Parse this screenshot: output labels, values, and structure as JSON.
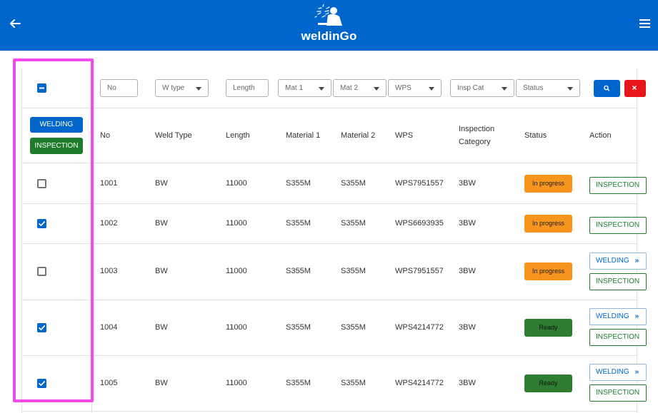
{
  "header": {
    "title": "weldinGo",
    "logo_icon": "welder-logo-icon",
    "back_icon": "arrow-left-icon",
    "menu_icon": "hamburger-menu-icon",
    "color": "#0066cc"
  },
  "filters": {
    "no": "No",
    "wtype": "W type",
    "length": "Length",
    "mat1": "Mat 1",
    "mat2": "Mat 2",
    "wps": "WPS",
    "inspcat": "Insp Cat",
    "status": "Status",
    "search_icon": "search-icon",
    "clear_icon": "close-icon"
  },
  "bulk_actions": {
    "welding": "WELDING",
    "inspection": "INSPECTION"
  },
  "columns": {
    "no": "No",
    "weld_type": "Weld Type",
    "length": "Length",
    "material1": "Material 1",
    "material2": "Material 2",
    "wps": "WPS",
    "insp_line1": "Inspection",
    "insp_line2": "Category",
    "status": "Status",
    "action": "Action"
  },
  "rows": [
    {
      "checked": false,
      "no": "1001",
      "weld_type": "BW",
      "length": "11000",
      "material1": "S355M",
      "material2": "S355M",
      "wps": "WPS7951557",
      "insp_cat": "3BW",
      "status": "In progress",
      "status_color": "#f7941d",
      "actions": [
        "INSPECTION"
      ]
    },
    {
      "checked": true,
      "no": "1002",
      "weld_type": "BW",
      "length": "11000",
      "material1": "S355M",
      "material2": "S355M",
      "wps": "WPS6693935",
      "insp_cat": "3BW",
      "status": "In progress",
      "status_color": "#f7941d",
      "actions": [
        "INSPECTION"
      ]
    },
    {
      "checked": false,
      "no": "1003",
      "weld_type": "BW",
      "length": "11000",
      "material1": "S355M",
      "material2": "S355M",
      "wps": "WPS7951557",
      "insp_cat": "3BW",
      "status": "In progress",
      "status_color": "#f7941d",
      "actions": [
        "WELDING",
        "INSPECTION"
      ]
    },
    {
      "checked": true,
      "no": "1004",
      "weld_type": "BW",
      "length": "11000",
      "material1": "S355M",
      "material2": "S355M",
      "wps": "WPS4214772",
      "insp_cat": "3BW",
      "status": "Ready",
      "status_color": "#2e7d32",
      "actions": [
        "WELDING",
        "INSPECTION"
      ]
    },
    {
      "checked": true,
      "no": "1005",
      "weld_type": "BW",
      "length": "11000",
      "material1": "S355M",
      "material2": "S355M",
      "wps": "WPS4214772",
      "insp_cat": "3BW",
      "status": "Ready",
      "status_color": "#2e7d32",
      "actions": [
        "WELDING",
        "INSPECTION"
      ]
    }
  ],
  "chevron_glyph": "»"
}
